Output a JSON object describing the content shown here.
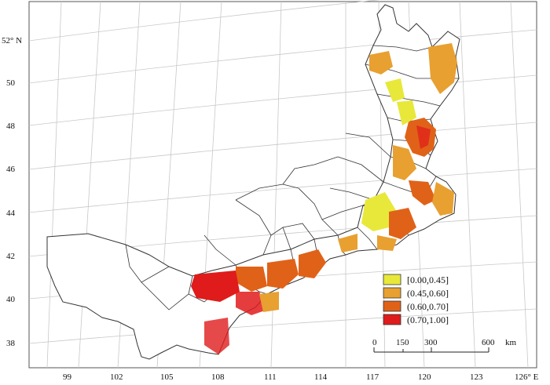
{
  "map": {
    "lat_ticks": [
      "38",
      "40",
      "42",
      "44",
      "46",
      "48",
      "50",
      "52° N"
    ],
    "lon_ticks": [
      "99",
      "102",
      "105",
      "108",
      "111",
      "114",
      "117",
      "120",
      "123",
      "126° E"
    ]
  },
  "legend": {
    "items": [
      {
        "label": "[0.00,0.45]",
        "color": "#e8e83a"
      },
      {
        "label": "(0.45,0.60]",
        "color": "#e8a030"
      },
      {
        "label": "(0.60,0.70]",
        "color": "#e06218"
      },
      {
        "label": "(0.70,1.00]",
        "color": "#e01b1b"
      }
    ]
  },
  "scale_bar": {
    "ticks": [
      "0",
      "150",
      "300",
      "600"
    ],
    "unit": "km"
  }
}
